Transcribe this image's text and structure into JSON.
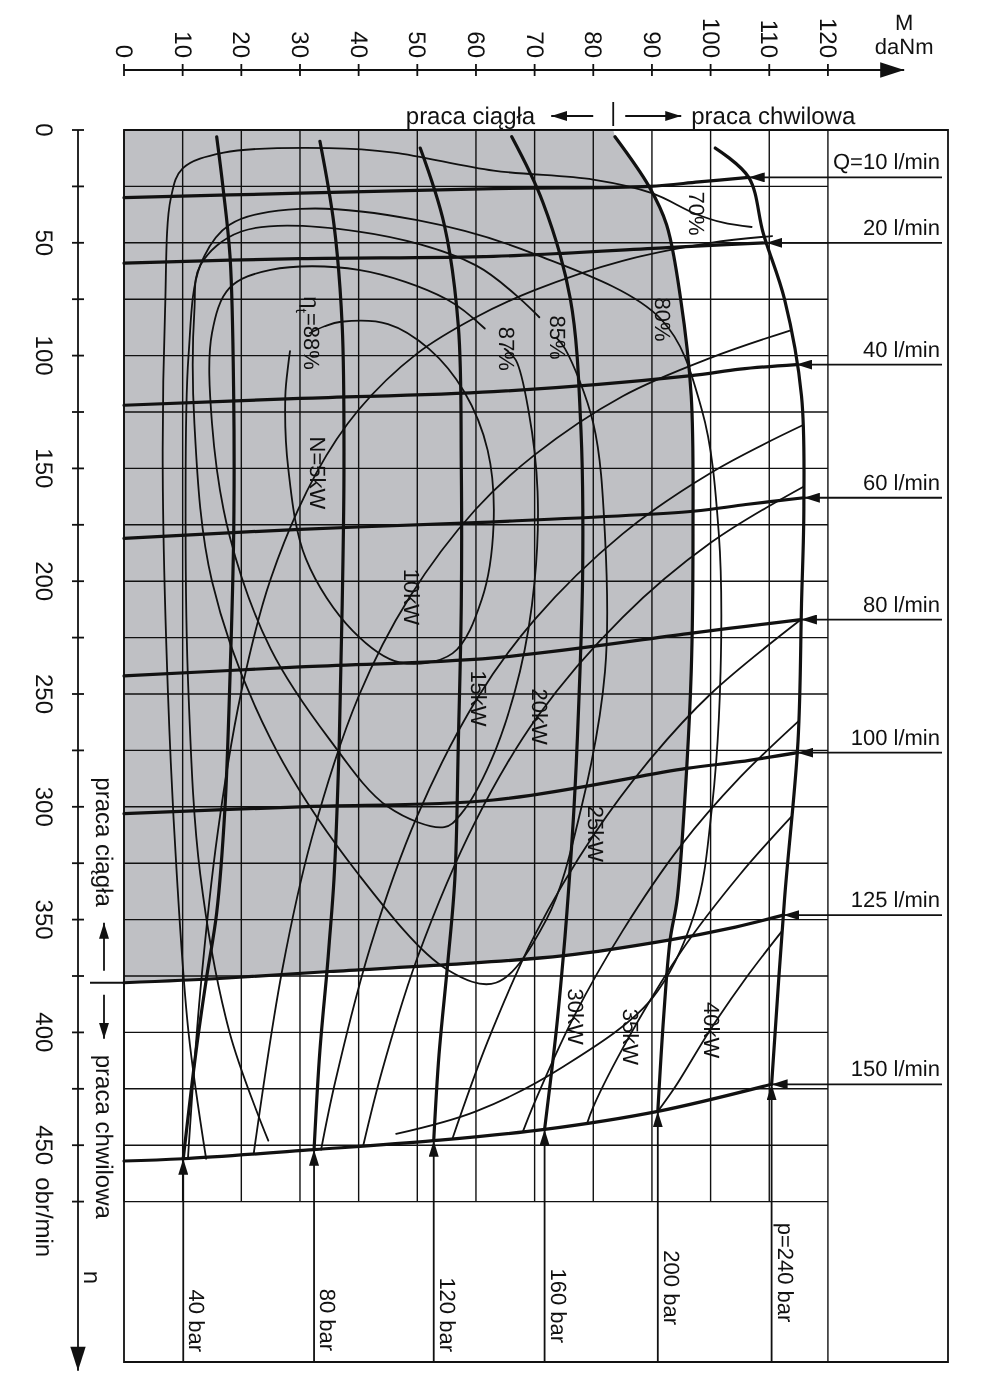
{
  "chart_data": {
    "type": "line",
    "xlabel": "M daNm",
    "ylabel": "n obr/min",
    "xlim": [
      0,
      133
    ],
    "ylim": [
      550,
      0
    ],
    "xticks": [
      0,
      10,
      20,
      30,
      40,
      50,
      60,
      70,
      80,
      90,
      100,
      110,
      120
    ],
    "yticks": [
      0,
      {
        "value": 25,
        "label": null
      },
      50,
      {
        "value": 75,
        "label": null
      },
      100,
      {
        "value": 125,
        "label": null
      },
      150,
      {
        "value": 175,
        "label": null
      },
      200,
      {
        "value": 225,
        "label": null
      },
      250,
      {
        "value": 275,
        "label": null
      },
      300,
      {
        "value": 325,
        "label": null
      },
      350,
      {
        "value": 375,
        "label": null
      },
      400,
      {
        "value": 425,
        "label": null
      },
      450,
      {
        "value": 475,
        "label": null
      }
    ],
    "grid": true,
    "legend": "right",
    "series": [
      {
        "type": "area",
        "color": "#bfc0c4",
        "x": [
          83.4,
          83.7,
          89.5,
          92.5,
          94.9,
          96.7,
          97,
          96.7,
          95.5,
          94.3,
          93.1,
          75,
          55,
          35,
          17,
          0
        ],
        "values": [
          0,
          3,
          25,
          42,
          75,
          118,
          179,
          240,
          301,
          341,
          359,
          366,
          370,
          373,
          376,
          378
        ]
      },
      {
        "name": "Q=10 l/min",
        "color": "#111111",
        "x": [
          0,
          30,
          63,
          89.5,
          98,
          106.5
        ],
        "values": [
          30,
          28,
          26,
          25,
          23,
          21
        ]
      },
      {
        "name": "20 l/min",
        "color": "#111111",
        "x": [
          0,
          30,
          63,
          93.2,
          101,
          109.5
        ],
        "values": [
          59,
          57,
          56,
          52,
          51,
          50
        ]
      },
      {
        "name": "40 l/min",
        "color": "#111111",
        "x": [
          0,
          30,
          63,
          96.3,
          105,
          114.6
        ],
        "values": [
          122,
          119,
          116,
          109,
          106,
          104
        ]
      },
      {
        "name": "60 l/min",
        "color": "#111111",
        "x": [
          0,
          30,
          60,
          97,
          106,
          115.9
        ],
        "values": [
          181,
          177,
          174,
          169,
          166,
          163
        ]
      },
      {
        "name": "80 l/min",
        "color": "#111111",
        "x": [
          0,
          30,
          63,
          96.8,
          106,
          115.4
        ],
        "values": [
          242,
          238,
          234,
          223,
          220,
          217
        ]
      },
      {
        "name": "100 l/min",
        "color": "#111111",
        "x": [
          0,
          30,
          63,
          95.9,
          105,
          114.8
        ],
        "values": [
          303,
          300,
          297,
          283,
          280,
          276
        ]
      },
      {
        "name": "125 l/min",
        "color": "#111111",
        "x": [
          0,
          17,
          35,
          55,
          75,
          93.1,
          103,
          112.4
        ],
        "values": [
          378,
          376,
          373,
          370,
          366,
          359,
          354,
          348
        ]
      },
      {
        "name": "150 l/min",
        "color": "#111111",
        "x": [
          0,
          10.1,
          32.4,
          52.8,
          71.7,
          91,
          110.4
        ],
        "values": [
          457,
          456,
          452,
          448,
          443,
          435,
          423
        ]
      },
      {
        "name": "40 bar",
        "color": "#111111",
        "x": [
          15.8,
          16.9,
          18.1,
          18.7,
          18.7,
          18.1,
          17.2,
          15.8,
          14,
          12.3,
          10.1
        ],
        "values": [
          3,
          26,
          57,
          118,
          179,
          240,
          301,
          347,
          377,
          408,
          456
        ]
      },
      {
        "name": "80 bar",
        "color": "#111111",
        "x": [
          33.4,
          35.8,
          37.2,
          37.5,
          37.2,
          36.7,
          35.8,
          35,
          34.6,
          33.4,
          32.4
        ],
        "values": [
          5,
          42,
          87,
          149,
          210,
          271,
          332,
          360,
          373,
          408,
          452
        ]
      },
      {
        "name": "120 bar",
        "color": "#111111",
        "x": [
          50.5,
          54.6,
          57,
          57.5,
          57.5,
          57,
          56.4,
          55.2,
          53.7,
          52.8
        ],
        "values": [
          8,
          42,
          87,
          149,
          210,
          271,
          332,
          369,
          410,
          448
        ]
      },
      {
        "name": "160 bar",
        "color": "#111111",
        "x": [
          66.1,
          71.4,
          76.1,
          77.9,
          78.2,
          77.5,
          76.7,
          75.5,
          74.9,
          73.7,
          71.7
        ],
        "values": [
          3,
          32,
          75,
          133,
          194,
          256,
          301,
          347,
          366,
          399,
          443
        ]
      },
      {
        "name": "200 bar",
        "color": "#111111",
        "x": [
          83.7,
          89.5,
          92.5,
          94.9,
          96.7,
          97,
          96.7,
          95.5,
          94.3,
          93.1,
          92,
          91
        ],
        "values": [
          3,
          25,
          42,
          75,
          118,
          179,
          240,
          301,
          341,
          359,
          393,
          435
        ]
      },
      {
        "name": "p=240 bar",
        "color": "#111111",
        "x": [
          100.8,
          106.5,
          109,
          112.6,
          115.5,
          115.9,
          115.5,
          114.9,
          112.6,
          110.4
        ],
        "values": [
          8,
          21,
          46,
          75,
          118,
          167,
          210,
          271,
          341,
          423
        ]
      },
      {
        "color": "#111111",
        "x": [
          14,
          11,
          9,
          7.5,
          6.6,
          7,
          8,
          10,
          17,
          35,
          46,
          63,
          80,
          90,
          97.3,
          102,
          107
        ],
        "values": [
          456,
          400,
          330,
          250,
          150,
          80,
          30,
          17,
          10,
          8,
          10,
          18,
          22,
          28,
          37,
          41,
          43
        ]
      },
      {
        "color": "#111111",
        "x": [
          24.6,
          18,
          13,
          11,
          10.5,
          11,
          13,
          18,
          30,
          50,
          70,
          91.6,
          98.5,
          101.4,
          101.7,
          100.2,
          97.3,
          90,
          75,
          60,
          46.4
        ],
        "values": [
          448,
          400,
          330,
          250,
          170,
          100,
          60,
          42,
          35,
          40,
          55,
          84,
          124,
          179,
          240,
          301,
          347,
          385,
          415,
          435,
          445
        ]
      },
      {
        "color": "#111111",
        "x": [
          73.7,
          75.2,
          80,
          82,
          82,
          78,
          72,
          63.4,
          55,
          40,
          25,
          15,
          12,
          12,
          13,
          20,
          40,
          60,
          70.8
        ],
        "values": [
          92,
          97,
          130,
          180,
          240,
          300,
          350,
          378,
          372,
          330,
          270,
          200,
          130,
          80,
          60,
          45,
          45,
          60,
          83
        ]
      },
      {
        "color": "#111111",
        "x": [
          64.9,
          66.8,
          69,
          70.5,
          70,
          67.5,
          62.5,
          57.5,
          54.6,
          45,
          35,
          25,
          18,
          15,
          15,
          18,
          25,
          40,
          55,
          61.5
        ],
        "values": [
          97,
          102,
          125,
          160,
          200,
          240,
          280,
          303,
          309,
          300,
          270,
          230,
          180,
          130,
          90,
          70,
          62,
          62,
          75,
          88
        ]
      },
      {
        "color": "#111111",
        "x": [
          31.7,
          34.2,
          37,
          45,
          52,
          58,
          62,
          63,
          61,
          56,
          47,
          39,
          31,
          28,
          27.5,
          28,
          28.3
        ],
        "values": [
          90,
          87,
          85,
          86,
          97,
          116,
          142,
          175,
          208,
          232,
          236,
          222,
          190,
          150,
          118,
          104,
          98
        ]
      },
      {
        "color": "#111111",
        "x": [
          110.5,
          100,
          85,
          70,
          60,
          50,
          40,
          32.8,
          25,
          20,
          16,
          13,
          10.9
        ],
        "values": [
          47,
          50,
          58,
          71,
          83,
          99,
          124,
          152,
          199,
          249,
          311,
          382,
          456
        ]
      },
      {
        "color": "#111111",
        "x": [
          113.4,
          100,
          85,
          70,
          60,
          48.7,
          40,
          32,
          27,
          22.1
        ],
        "values": [
          89,
          101,
          118,
          144,
          168,
          207,
          251,
          314,
          372,
          454
        ]
      },
      {
        "color": "#111111",
        "x": [
          115.6,
          100,
          85,
          70,
          60.2,
          50,
          42,
          36,
          33.6
        ],
        "values": [
          131,
          152,
          179,
          217,
          252,
          304,
          362,
          422,
          452
        ]
      },
      {
        "color": "#111111",
        "x": [
          115.9,
          100,
          85,
          70.5,
          60,
          50,
          44,
          40.8
        ],
        "values": [
          158,
          183,
          216,
          260,
          306,
          367,
          417,
          450
        ]
      },
      {
        "color": "#111111",
        "x": [
          115.4,
          100,
          90,
          80.2,
          70,
          62,
          56
        ],
        "values": [
          217,
          250,
          278,
          312,
          357,
          404,
          447
        ]
      },
      {
        "color": "#111111",
        "x": [
          115,
          105,
          95,
          85,
          76.7,
          70,
          68
        ],
        "values": [
          262,
          287,
          317,
          355,
          393,
          431,
          444
        ]
      },
      {
        "color": "#111111",
        "x": [
          113.9,
          105,
          95,
          86.1,
          80,
          79
        ],
        "values": [
          304,
          330,
          364,
          402,
          433,
          440
        ]
      },
      {
        "color": "#111111",
        "x": [
          112.2,
          106,
          99.9,
          94,
          91
        ],
        "values": [
          355,
          376,
          399,
          424,
          435
        ]
      }
    ],
    "annotations": [
      "praca ciągła",
      "praca chwilowa",
      "praca ciągła",
      "praca chwilowa",
      {
        "text": "70%",
        "x": 97.3,
        "y": 37
      },
      {
        "text": "80%",
        "x": 91.6,
        "y": 84
      },
      {
        "text": "85%",
        "x": 73.7,
        "y": 92
      },
      {
        "text": "87%",
        "x": 64.9,
        "y": 97
      },
      {
        "text": "η$_{t}$=88%",
        "x": 31.7,
        "y": 90
      },
      {
        "text": "N=5kW",
        "x": 32.8,
        "y": 152
      },
      {
        "text": "10kW",
        "x": 48.7,
        "y": 207
      },
      {
        "text": "15kW",
        "x": 60.2,
        "y": 252
      },
      {
        "text": "20kW",
        "x": 70.5,
        "y": 260
      },
      {
        "text": "25kW",
        "x": 80.2,
        "y": 312
      },
      {
        "text": "30kW",
        "x": 76.7,
        "y": 393
      },
      {
        "text": "35kW",
        "x": 86.1,
        "y": 402
      },
      {
        "text": "40kW",
        "x": 99.9,
        "y": 399
      }
    ]
  }
}
